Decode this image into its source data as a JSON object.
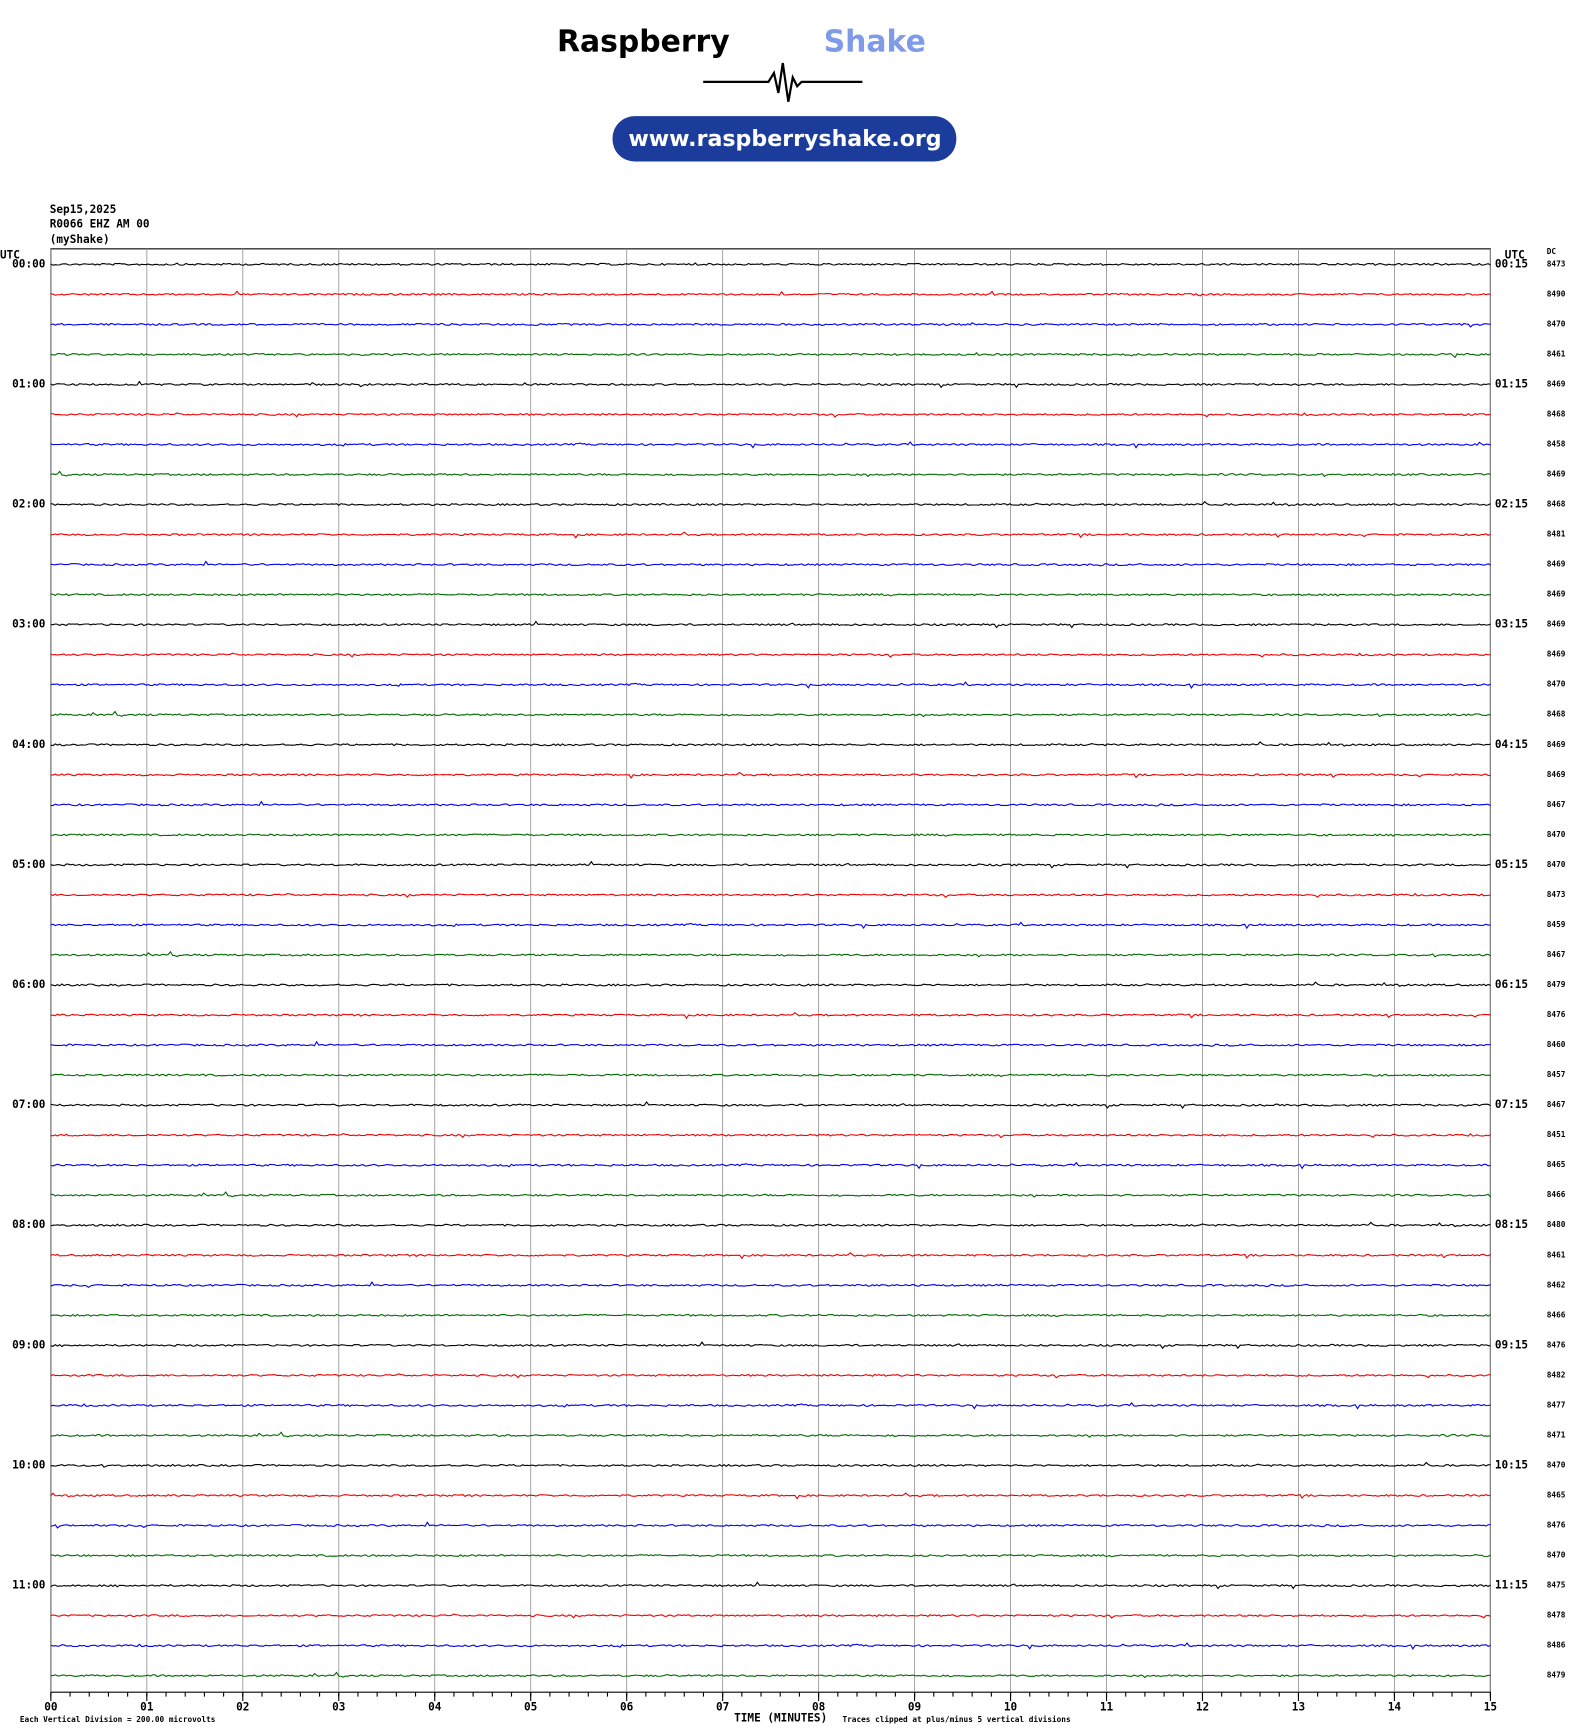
{
  "chart_data": {
    "type": "helicorder",
    "brand": "Raspberry",
    "brand_accent": "Shake",
    "url": "www.raspberryshake.org",
    "date": "Sep15,2025",
    "station": "R0066 EHZ AM 00",
    "source": "(myShake)",
    "left_axis_title": "UTC",
    "right_axis_title": "UTC",
    "dc_title": "DC",
    "left_labels": [
      "00:00",
      "01:00",
      "02:00",
      "03:00",
      "04:00",
      "05:00",
      "06:00",
      "07:00",
      "08:00",
      "09:00",
      "10:00",
      "11:00"
    ],
    "right_labels": [
      "00:15",
      "01:15",
      "02:15",
      "03:15",
      "04:15",
      "05:15",
      "06:15",
      "07:15",
      "08:15",
      "09:15",
      "10:15",
      "11:15"
    ],
    "dc": [
      8473,
      8490,
      8470,
      8461,
      8469,
      8468,
      8458,
      8469,
      8468,
      8481,
      8469,
      8469,
      8469,
      8469,
      8470,
      8468,
      8469,
      8469,
      8467,
      8470,
      8470,
      8473,
      8459,
      8467,
      8479,
      8476,
      8460,
      8457,
      8467,
      8451,
      8465,
      8466,
      8480,
      8461,
      8462,
      8466,
      8476,
      8482,
      8477,
      8471,
      8470,
      8465,
      8476,
      8470,
      8475,
      8478,
      8486,
      8479
    ],
    "colors": [
      "#000000",
      "#ee0000",
      "#0000ee",
      "#006a00"
    ],
    "xlabel": "TIME (MINUTES)",
    "xlim": [
      0,
      15
    ],
    "xticks": [
      {
        "value": 0,
        "label": "00"
      },
      {
        "value": 1,
        "label": "01"
      },
      {
        "value": 2,
        "label": "02"
      },
      {
        "value": 3,
        "label": "03"
      },
      {
        "value": 4,
        "label": "04"
      },
      {
        "value": 5,
        "label": "05"
      },
      {
        "value": 6,
        "label": "06"
      },
      {
        "value": 7,
        "label": "07"
      },
      {
        "value": 8,
        "label": "08"
      },
      {
        "value": 9,
        "label": "09"
      },
      10,
      11,
      12,
      13,
      14,
      15
    ],
    "grid": true,
    "footer_left": "Each Vertical Division =  200.00 microvolts",
    "footer_right": "Traces clipped at plus/minus 5 vertical divisions"
  }
}
